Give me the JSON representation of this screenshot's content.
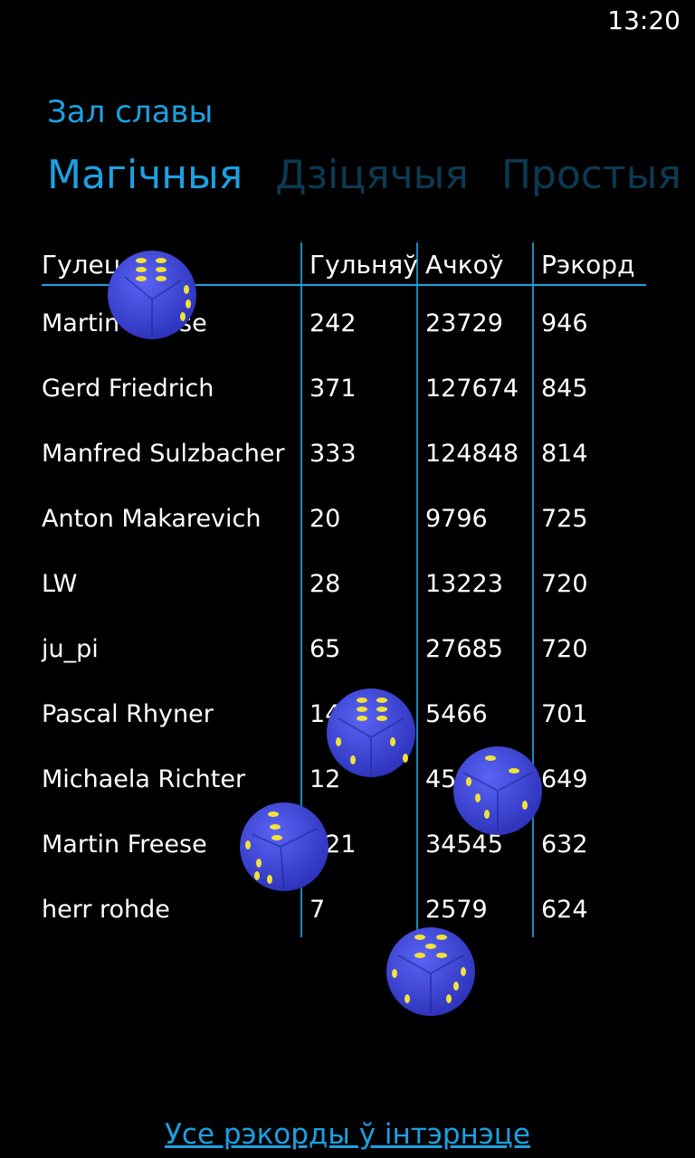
{
  "status": {
    "time": "13:20"
  },
  "app": {
    "title": "Зал славы"
  },
  "pivot": {
    "items": [
      {
        "label": "Магічныя"
      },
      {
        "label": "Дзіцячыя"
      },
      {
        "label": "Простыя"
      },
      {
        "label": ""
      }
    ]
  },
  "table": {
    "headers": {
      "player": "Гулец",
      "games": "Гульняў",
      "points": "Ачкоў",
      "record": "Рэкорд"
    },
    "rows": [
      {
        "player": "Martin Freese",
        "games": "242",
        "points": "23729",
        "record": "946"
      },
      {
        "player": "Gerd Friedrich",
        "games": "371",
        "points": "127674",
        "record": "845"
      },
      {
        "player": "Manfred Sulzbacher",
        "games": "333",
        "points": "124848",
        "record": "814"
      },
      {
        "player": "Anton Makarevich",
        "games": "20",
        "points": "9796",
        "record": "725"
      },
      {
        "player": "LW",
        "games": "28",
        "points": "13223",
        "record": "720"
      },
      {
        "player": "ju_pi",
        "games": "65",
        "points": "27685",
        "record": "720"
      },
      {
        "player": "Pascal Rhyner",
        "games": "14",
        "points": "5466",
        "record": "701"
      },
      {
        "player": "Michaela Richter",
        "games": "12",
        "points": "4577",
        "record": "649"
      },
      {
        "player": "Martin Freese",
        "games": "121",
        "points": "34545",
        "record": "632"
      },
      {
        "player": "herr rohde",
        "games": "7",
        "points": "2579",
        "record": "624"
      }
    ]
  },
  "footer": {
    "link_label": "Усе рэкорды ў інтэрнэце"
  },
  "colors": {
    "accent": "#1ba1e2",
    "background": "#000000",
    "die_body": "#3c44e0",
    "die_pip": "#f2e23a"
  }
}
